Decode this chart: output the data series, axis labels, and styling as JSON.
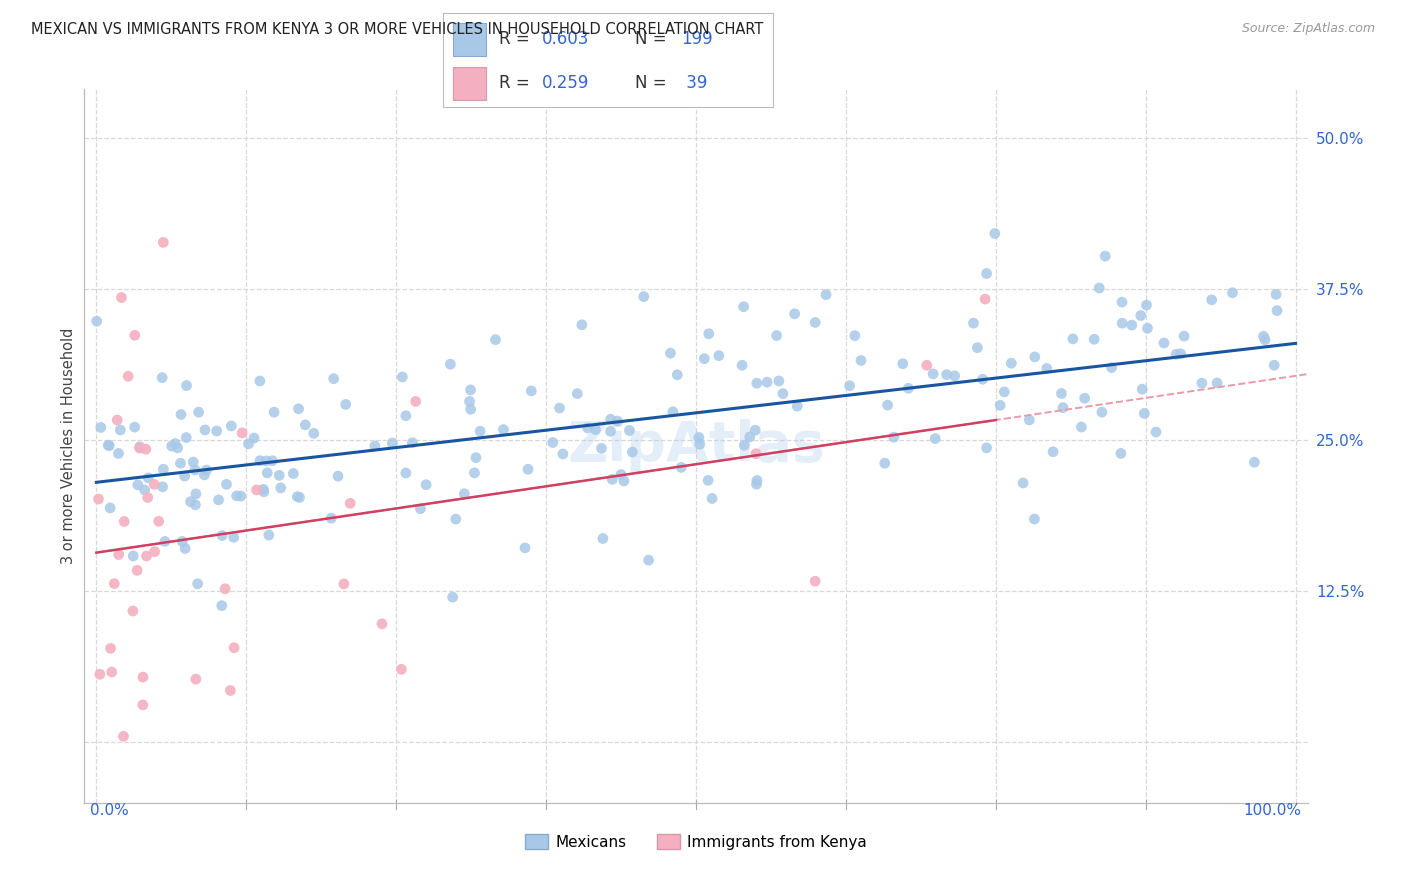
{
  "title": "MEXICAN VS IMMIGRANTS FROM KENYA 3 OR MORE VEHICLES IN HOUSEHOLD CORRELATION CHART",
  "source": "Source: ZipAtlas.com",
  "ylabel": "3 or more Vehicles in Household",
  "ylabel_ticks": [
    "12.5%",
    "25.0%",
    "37.5%",
    "50.0%"
  ],
  "ylabel_tick_vals": [
    0.125,
    0.25,
    0.375,
    0.5
  ],
  "xlabel_ticks_left": [
    "0.0%"
  ],
  "xlabel_ticks_right": [
    "100.0%"
  ],
  "xlim": [
    -0.01,
    1.01
  ],
  "ylim": [
    -0.05,
    0.54
  ],
  "blue_R": 0.603,
  "blue_N": 199,
  "pink_R": 0.259,
  "pink_N": 39,
  "blue_color": "#a8c8e8",
  "blue_line_color": "#1a56a0",
  "pink_color": "#f4b0c0",
  "pink_line_color": "#d04060",
  "pink_dashed_color": "#e89aaa",
  "legend_blue_fill": "#a8c8e8",
  "legend_pink_fill": "#f4b0c0",
  "watermark": "ZipAtlas",
  "grid_color": "#d8d8d8",
  "tick_label_color": "#3366cc"
}
